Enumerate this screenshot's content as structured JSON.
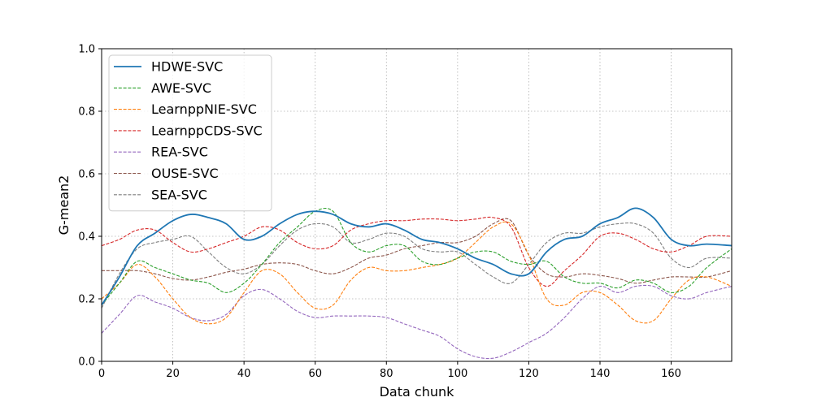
{
  "chart_data": {
    "type": "line",
    "title": "",
    "xlabel": "Data chunk",
    "ylabel": "G-mean2",
    "xlim": [
      0,
      177
    ],
    "ylim": [
      0.0,
      1.0
    ],
    "xticks": [
      "0",
      "20",
      "40",
      "60",
      "80",
      "100",
      "120",
      "140",
      "160"
    ],
    "xtick_values": [
      0,
      20,
      40,
      60,
      80,
      100,
      120,
      140,
      160
    ],
    "yticks": [
      "0.0",
      "0.2",
      "0.4",
      "0.6",
      "0.8",
      "1.0"
    ],
    "ytick_values": [
      0.0,
      0.2,
      0.4,
      0.6,
      0.8,
      1.0
    ],
    "grid": true,
    "legend_position": "top-left",
    "x": [
      0,
      5,
      10,
      15,
      20,
      25,
      30,
      35,
      40,
      45,
      50,
      55,
      60,
      65,
      70,
      75,
      80,
      85,
      90,
      95,
      100,
      105,
      110,
      115,
      120,
      125,
      130,
      135,
      140,
      145,
      150,
      155,
      160,
      165,
      170,
      177
    ],
    "series": [
      {
        "name": "HDWE-SVC",
        "color": "#1f77b4",
        "style": "solid",
        "values": [
          0.18,
          0.27,
          0.37,
          0.41,
          0.45,
          0.47,
          0.46,
          0.44,
          0.39,
          0.4,
          0.44,
          0.47,
          0.48,
          0.47,
          0.44,
          0.43,
          0.44,
          0.42,
          0.39,
          0.38,
          0.36,
          0.33,
          0.31,
          0.28,
          0.28,
          0.35,
          0.39,
          0.4,
          0.44,
          0.46,
          0.49,
          0.46,
          0.39,
          0.37,
          0.375,
          0.37
        ]
      },
      {
        "name": "AWE-SVC",
        "color": "#2ca02c",
        "style": "dashed",
        "values": [
          0.18,
          0.25,
          0.32,
          0.3,
          0.28,
          0.26,
          0.25,
          0.22,
          0.25,
          0.31,
          0.38,
          0.43,
          0.48,
          0.48,
          0.38,
          0.35,
          0.37,
          0.37,
          0.32,
          0.31,
          0.33,
          0.35,
          0.35,
          0.32,
          0.31,
          0.32,
          0.27,
          0.25,
          0.25,
          0.235,
          0.26,
          0.25,
          0.22,
          0.24,
          0.3,
          0.36
        ]
      },
      {
        "name": "LearnppNIE-SVC",
        "color": "#ff7f0e",
        "style": "dashed",
        "values": [
          0.2,
          0.25,
          0.31,
          0.27,
          0.2,
          0.14,
          0.12,
          0.14,
          0.22,
          0.29,
          0.28,
          0.22,
          0.17,
          0.18,
          0.26,
          0.3,
          0.29,
          0.29,
          0.3,
          0.31,
          0.33,
          0.38,
          0.43,
          0.44,
          0.34,
          0.2,
          0.18,
          0.22,
          0.22,
          0.18,
          0.13,
          0.13,
          0.2,
          0.26,
          0.27,
          0.24
        ]
      },
      {
        "name": "LearnppCDS-SVC",
        "color": "#d62728",
        "style": "dashed",
        "values": [
          0.37,
          0.39,
          0.42,
          0.42,
          0.38,
          0.35,
          0.36,
          0.38,
          0.4,
          0.43,
          0.42,
          0.38,
          0.36,
          0.37,
          0.42,
          0.44,
          0.45,
          0.45,
          0.455,
          0.455,
          0.45,
          0.455,
          0.46,
          0.43,
          0.3,
          0.24,
          0.29,
          0.34,
          0.4,
          0.41,
          0.39,
          0.36,
          0.35,
          0.37,
          0.4,
          0.4
        ]
      },
      {
        "name": "REA-SVC",
        "color": "#9467bd",
        "style": "dashed",
        "values": [
          0.09,
          0.15,
          0.21,
          0.19,
          0.17,
          0.14,
          0.13,
          0.15,
          0.21,
          0.23,
          0.2,
          0.16,
          0.14,
          0.145,
          0.145,
          0.145,
          0.14,
          0.12,
          0.1,
          0.08,
          0.04,
          0.015,
          0.01,
          0.03,
          0.06,
          0.09,
          0.14,
          0.2,
          0.24,
          0.22,
          0.24,
          0.24,
          0.21,
          0.2,
          0.22,
          0.24
        ]
      },
      {
        "name": "OUSE-SVC",
        "color": "#8c564b",
        "style": "dashed",
        "values": [
          0.29,
          0.29,
          0.29,
          0.28,
          0.265,
          0.26,
          0.27,
          0.285,
          0.295,
          0.31,
          0.315,
          0.31,
          0.29,
          0.28,
          0.3,
          0.33,
          0.34,
          0.36,
          0.37,
          0.38,
          0.38,
          0.4,
          0.44,
          0.45,
          0.34,
          0.28,
          0.27,
          0.28,
          0.275,
          0.265,
          0.25,
          0.26,
          0.27,
          0.27,
          0.27,
          0.29
        ]
      },
      {
        "name": "SEA-SVC",
        "color": "#7f7f7f",
        "style": "dashed",
        "values": [
          0.17,
          0.28,
          0.36,
          0.38,
          0.39,
          0.4,
          0.35,
          0.3,
          0.28,
          0.31,
          0.37,
          0.42,
          0.44,
          0.43,
          0.38,
          0.39,
          0.41,
          0.4,
          0.36,
          0.35,
          0.35,
          0.31,
          0.27,
          0.25,
          0.31,
          0.38,
          0.41,
          0.41,
          0.43,
          0.44,
          0.44,
          0.41,
          0.33,
          0.3,
          0.33,
          0.33
        ]
      }
    ]
  }
}
